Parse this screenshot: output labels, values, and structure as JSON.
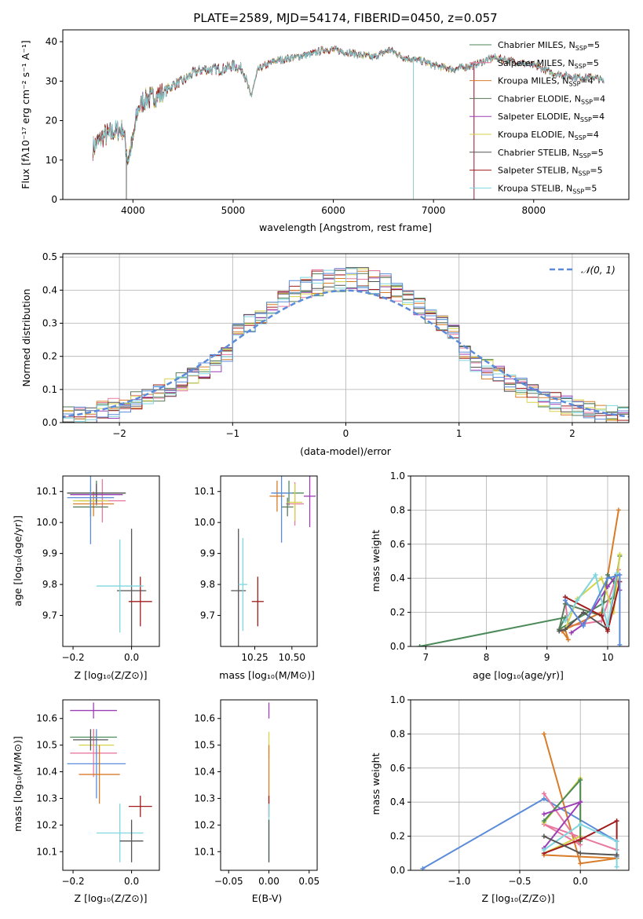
{
  "chart_data": [
    {
      "id": "spectrum",
      "type": "line",
      "title": "PLATE=2589, MJD=54174, FIBERID=0450, z=0.057",
      "xlabel": "wavelength [Angstrom, rest frame]",
      "ylabel": "Flux [fλ10⁻¹⁷ erg cm⁻² s⁻¹ A⁻¹]",
      "xlim": [
        3300,
        8950
      ],
      "ylim": [
        0,
        43
      ],
      "xticks": [
        4000,
        5000,
        6000,
        7000,
        8000
      ],
      "yticks": [
        0,
        10,
        20,
        30,
        40
      ],
      "legend_position": "top-right",
      "x_range_data": [
        3600,
        8700
      ],
      "anchors": [
        [
          3600,
          13
        ],
        [
          3700,
          16
        ],
        [
          3800,
          17
        ],
        [
          3900,
          18
        ],
        [
          3950,
          10
        ],
        [
          4000,
          15
        ],
        [
          4050,
          23
        ],
        [
          4100,
          25
        ],
        [
          4200,
          26
        ],
        [
          4300,
          27
        ],
        [
          4400,
          29
        ],
        [
          4500,
          30
        ],
        [
          4600,
          32
        ],
        [
          4700,
          33
        ],
        [
          4800,
          33
        ],
        [
          4900,
          33
        ],
        [
          5000,
          34
        ],
        [
          5100,
          33
        ],
        [
          5175,
          26
        ],
        [
          5250,
          33
        ],
        [
          5400,
          35
        ],
        [
          5600,
          36
        ],
        [
          5800,
          37
        ],
        [
          5900,
          38
        ],
        [
          6000,
          38
        ],
        [
          6200,
          37
        ],
        [
          6400,
          36
        ],
        [
          6563,
          38
        ],
        [
          6700,
          36
        ],
        [
          6900,
          35
        ],
        [
          7000,
          34
        ],
        [
          7200,
          33
        ],
        [
          7400,
          34
        ],
        [
          7600,
          36
        ],
        [
          7800,
          35
        ],
        [
          8000,
          34
        ],
        [
          8200,
          32
        ],
        [
          8400,
          31
        ],
        [
          8600,
          31
        ],
        [
          8700,
          30
        ]
      ],
      "dips": [
        {
          "x": 3934,
          "y": 0
        },
        {
          "x": 6800,
          "y": 0
        },
        {
          "x": 7405,
          "y": 0
        }
      ],
      "series": [
        {
          "name": "Chabrier MILES, N_SSP=5",
          "color": "#4c8a59"
        },
        {
          "name": "Salpeter MILES, N_SSP=5",
          "color": "#e87aa0"
        },
        {
          "name": "Kroupa MILES, N_SSP=4",
          "color": "#d87c2a"
        },
        {
          "name": "Chabrier ELODIE, N_SSP=4",
          "color": "#5a7a5a"
        },
        {
          "name": "Salpeter ELODIE, N_SSP=4",
          "color": "#9b3fb5"
        },
        {
          "name": "Kroupa ELODIE, N_SSP=4",
          "color": "#d6d24a"
        },
        {
          "name": "Chabrier STELIB, N_SSP=5",
          "color": "#555555"
        },
        {
          "name": "Salpeter STELIB, N_SSP=5",
          "color": "#a11d1d"
        },
        {
          "name": "Kroupa STELIB, N_SSP=5",
          "color": "#7fd6e0"
        }
      ]
    },
    {
      "id": "residuals",
      "type": "histogram",
      "xlabel": "(data-model)/error",
      "ylabel": "Normed distribution",
      "xlim": [
        -2.5,
        2.5
      ],
      "ylim": [
        0,
        0.51
      ],
      "xticks": [
        -2,
        -1,
        0,
        1,
        2
      ],
      "yticks": [
        0.0,
        0.1,
        0.2,
        0.3,
        0.4,
        0.5
      ],
      "bin_width": 0.1,
      "normal_label": "𝒩(0, 1)",
      "normal_color": "#5b8bd9",
      "legend_position": "top-right",
      "grid": true
    },
    {
      "id": "age_vs_Z",
      "type": "errorbar",
      "xlabel": "Z [log₁₀(Z/Z⊙)]",
      "ylabel": "age  [log₁₀(age/yr)]",
      "xlim": [
        -0.235,
        0.095
      ],
      "ylim": [
        9.6,
        10.15
      ],
      "xticks": [
        -0.2,
        0.0
      ],
      "yticks": [
        9.7,
        9.8,
        9.9,
        10.0,
        10.1
      ],
      "points": [
        {
          "x": -0.12,
          "y": 10.095,
          "xerr": 0.1,
          "yerr": 0.04,
          "color": "#4c8a59"
        },
        {
          "x": -0.1,
          "y": 10.07,
          "xerr": 0.08,
          "yerr": 0.07,
          "color": "#e87aa0"
        },
        {
          "x": -0.13,
          "y": 10.06,
          "xerr": 0.07,
          "yerr": 0.04,
          "color": "#d87c2a"
        },
        {
          "x": -0.14,
          "y": 10.05,
          "xerr": 0.06,
          "yerr": 0.03,
          "color": "#5a7a5a"
        },
        {
          "x": -0.12,
          "y": 10.09,
          "xerr": 0.09,
          "yerr": 0.03,
          "color": "#9b3fb5"
        },
        {
          "x": -0.14,
          "y": 10.07,
          "xerr": 0.06,
          "yerr": 0.05,
          "color": "#d6d24a"
        },
        {
          "x": -0.12,
          "y": 10.095,
          "xerr": 0.1,
          "yerr": 0.03,
          "color": "#555555"
        },
        {
          "x": 0.0,
          "y": 9.78,
          "xerr": 0.05,
          "yerr": 0.2,
          "color": "#555555"
        },
        {
          "x": 0.03,
          "y": 9.745,
          "xerr": 0.04,
          "yerr": 0.08,
          "color": "#a11d1d"
        },
        {
          "x": -0.04,
          "y": 9.795,
          "xerr": 0.08,
          "yerr": 0.15,
          "color": "#7fd6e0"
        },
        {
          "x": -0.14,
          "y": 10.08,
          "xerr": 0.08,
          "yerr": 0.15,
          "color": "#5b8bd9"
        }
      ]
    },
    {
      "id": "age_vs_mass",
      "type": "errorbar",
      "xlabel": "mass [log₁₀(M/M⊙)]",
      "xlim": [
        10.02,
        10.67
      ],
      "ylim": [
        9.6,
        10.15
      ],
      "xticks": [
        10.25,
        10.5
      ],
      "yticks": [
        9.7,
        9.8,
        9.9,
        10.0,
        10.1
      ],
      "points": [
        {
          "x": 10.48,
          "y": 10.095,
          "xerr": 0.1,
          "yerr": 0.04,
          "color": "#4c8a59"
        },
        {
          "x": 10.52,
          "y": 10.06,
          "xerr": 0.06,
          "yerr": 0.07,
          "color": "#e87aa0"
        },
        {
          "x": 10.4,
          "y": 10.085,
          "xerr": 0.05,
          "yerr": 0.05,
          "color": "#d87c2a"
        },
        {
          "x": 10.47,
          "y": 10.05,
          "xerr": 0.04,
          "yerr": 0.03,
          "color": "#5a7a5a"
        },
        {
          "x": 10.62,
          "y": 10.085,
          "xerr": 0.04,
          "yerr": 0.1,
          "color": "#9b3fb5"
        },
        {
          "x": 10.52,
          "y": 10.065,
          "xerr": 0.05,
          "yerr": 0.06,
          "color": "#d6d24a"
        },
        {
          "x": 10.14,
          "y": 9.78,
          "xerr": 0.05,
          "yerr": 0.2,
          "color": "#555555"
        },
        {
          "x": 10.27,
          "y": 9.745,
          "xerr": 0.04,
          "yerr": 0.08,
          "color": "#a11d1d"
        },
        {
          "x": 10.17,
          "y": 9.8,
          "xerr": 0.03,
          "yerr": 0.15,
          "color": "#7fd6e0"
        },
        {
          "x": 10.43,
          "y": 10.095,
          "xerr": 0.07,
          "yerr": 0.16,
          "color": "#5b8bd9"
        }
      ]
    },
    {
      "id": "weight_vs_age",
      "type": "line",
      "xlabel": "age  [log₁₀(age/yr)]",
      "ylabel": "mass weight",
      "xlim": [
        6.75,
        10.35
      ],
      "ylim": [
        0,
        1
      ],
      "xticks": [
        7,
        8,
        9,
        10
      ],
      "yticks": [
        0.0,
        0.2,
        0.4,
        0.6,
        0.8,
        1.0
      ],
      "grid": true,
      "series": [
        {
          "color": "#4c8a59",
          "x": [
            6.9,
            9.3,
            9.2,
            10.1,
            10.2
          ],
          "y": [
            0.0,
            0.17,
            0.1,
            0.29,
            0.53
          ]
        },
        {
          "color": "#e87aa0",
          "x": [
            9.3,
            9.35,
            9.9,
            10.18
          ],
          "y": [
            0.27,
            0.12,
            0.15,
            0.45
          ]
        },
        {
          "color": "#d87c2a",
          "x": [
            9.25,
            9.35,
            9.3,
            9.9,
            10.18
          ],
          "y": [
            0.09,
            0.04,
            0.1,
            0.2,
            0.8
          ]
        },
        {
          "color": "#5a7a5a",
          "x": [
            9.2,
            9.3,
            9.9,
            10.0,
            10.1
          ],
          "y": [
            0.1,
            0.25,
            0.18,
            0.42,
            0.38
          ]
        },
        {
          "color": "#9b3fb5",
          "x": [
            9.4,
            9.6,
            10.0,
            10.15,
            10.2
          ],
          "y": [
            0.08,
            0.13,
            0.35,
            0.42,
            0.33
          ]
        },
        {
          "color": "#d6d24a",
          "x": [
            9.3,
            9.5,
            9.9,
            10.1,
            10.2
          ],
          "y": [
            0.1,
            0.28,
            0.4,
            0.2,
            0.54
          ]
        },
        {
          "color": "#555555",
          "x": [
            9.2,
            9.3,
            9.6,
            10.0,
            10.15
          ],
          "y": [
            0.09,
            0.1,
            0.2,
            0.1,
            0.42
          ]
        },
        {
          "color": "#a11d1d",
          "x": [
            9.3,
            9.9,
            10.0,
            10.2
          ],
          "y": [
            0.29,
            0.18,
            0.09,
            0.38
          ]
        },
        {
          "color": "#7fd6e0",
          "x": [
            9.3,
            9.5,
            9.8,
            10.0,
            10.15
          ],
          "y": [
            0.15,
            0.27,
            0.42,
            0.12,
            0.43
          ]
        },
        {
          "color": "#5b8bd9",
          "x": [
            9.3,
            9.6,
            10.0,
            10.2,
            10.2
          ],
          "y": [
            0.27,
            0.12,
            0.4,
            0.42,
            0.01
          ]
        }
      ]
    },
    {
      "id": "mass_vs_Z",
      "type": "errorbar",
      "xlabel": "Z [log₁₀(Z/Z⊙)]",
      "ylabel": "mass [log₁₀(M/M⊙)]",
      "xlim": [
        -0.235,
        0.095
      ],
      "ylim": [
        10.03,
        10.67
      ],
      "xticks": [
        -0.2,
        0.0
      ],
      "yticks": [
        10.1,
        10.2,
        10.3,
        10.4,
        10.5,
        10.6
      ],
      "points": [
        {
          "x": -0.13,
          "y": 10.63,
          "xerr": 0.08,
          "yerr": 0.03,
          "color": "#9b3fb5"
        },
        {
          "x": -0.13,
          "y": 10.53,
          "xerr": 0.08,
          "yerr": 0.03,
          "color": "#4c8a59"
        },
        {
          "x": -0.12,
          "y": 10.5,
          "xerr": 0.06,
          "yerr": 0.05,
          "color": "#d6d24a"
        },
        {
          "x": -0.13,
          "y": 10.47,
          "xerr": 0.08,
          "yerr": 0.09,
          "color": "#e87aa0"
        },
        {
          "x": -0.12,
          "y": 10.43,
          "xerr": 0.1,
          "yerr": 0.13,
          "color": "#5b8bd9"
        },
        {
          "x": -0.11,
          "y": 10.39,
          "xerr": 0.07,
          "yerr": 0.11,
          "color": "#d87c2a"
        },
        {
          "x": -0.14,
          "y": 10.52,
          "xerr": 0.06,
          "yerr": 0.04,
          "color": "#555555"
        },
        {
          "x": 0.03,
          "y": 10.27,
          "xerr": 0.04,
          "yerr": 0.04,
          "color": "#a11d1d"
        },
        {
          "x": -0.04,
          "y": 10.17,
          "xerr": 0.08,
          "yerr": 0.11,
          "color": "#7fd6e0"
        },
        {
          "x": 0.0,
          "y": 10.14,
          "xerr": 0.04,
          "yerr": 0.08,
          "color": "#555555"
        }
      ]
    },
    {
      "id": "mass_vs_ebv",
      "type": "errorbar",
      "xlabel": "E(B-V)",
      "xlim": [
        -0.06,
        0.06
      ],
      "ylim": [
        10.03,
        10.67
      ],
      "xticks": [
        -0.05,
        0.0,
        0.05
      ],
      "yticks": [
        10.1,
        10.2,
        10.3,
        10.4,
        10.5,
        10.6
      ],
      "points": [
        {
          "x": 0.0,
          "y": 10.63,
          "xerr": 0.0,
          "yerr": 0.03,
          "color": "#9b3fb5"
        },
        {
          "x": 0.0,
          "y": 10.5,
          "xerr": 0.0,
          "yerr": 0.05,
          "color": "#d6d24a"
        },
        {
          "x": 0.0,
          "y": 10.39,
          "xerr": 0.0,
          "yerr": 0.11,
          "color": "#d87c2a"
        },
        {
          "x": 0.0,
          "y": 10.27,
          "xerr": 0.0,
          "yerr": 0.04,
          "color": "#a11d1d"
        },
        {
          "x": 0.0,
          "y": 10.17,
          "xerr": 0.0,
          "yerr": 0.11,
          "color": "#7fd6e0"
        },
        {
          "x": 0.0,
          "y": 10.14,
          "xerr": 0.0,
          "yerr": 0.08,
          "color": "#555555"
        }
      ]
    },
    {
      "id": "weight_vs_Z",
      "type": "line",
      "xlabel": "Z [log₁₀(Z/Z⊙)]",
      "ylabel": "mass weight",
      "xlim": [
        -1.4,
        0.4
      ],
      "ylim": [
        0,
        1
      ],
      "xticks": [
        -1.0,
        -0.5,
        0.0
      ],
      "yticks": [
        0.0,
        0.2,
        0.4,
        0.6,
        0.8,
        1.0
      ],
      "grid": true,
      "series": [
        {
          "color": "#5b8bd9",
          "x": [
            -1.3,
            -0.3,
            0.3,
            0.3
          ],
          "y": [
            0.01,
            0.42,
            0.17,
            0.08
          ]
        },
        {
          "color": "#d87c2a",
          "x": [
            -0.3,
            0.0,
            0.3,
            -0.3
          ],
          "y": [
            0.8,
            0.04,
            0.07,
            0.09
          ]
        },
        {
          "color": "#e87aa0",
          "x": [
            -0.3,
            0.0,
            -0.3,
            0.3
          ],
          "y": [
            0.45,
            0.15,
            0.27,
            0.12
          ]
        },
        {
          "color": "#d6d24a",
          "x": [
            -0.3,
            0.0,
            0.0,
            -0.3
          ],
          "y": [
            0.28,
            0.54,
            0.2,
            0.1
          ]
        },
        {
          "color": "#4c8a59",
          "x": [
            -0.3,
            0.0,
            0.0
          ],
          "y": [
            0.29,
            0.53,
            0.17
          ]
        },
        {
          "color": "#9b3fb5",
          "x": [
            -0.3,
            0.0,
            -0.3
          ],
          "y": [
            0.33,
            0.4,
            0.13
          ]
        },
        {
          "color": "#a11d1d",
          "x": [
            -0.3,
            0.0,
            0.3,
            0.3
          ],
          "y": [
            0.1,
            0.18,
            0.29,
            0.09
          ]
        },
        {
          "color": "#7fd6e0",
          "x": [
            -0.3,
            0.0,
            0.3,
            0.3
          ],
          "y": [
            0.12,
            0.27,
            0.17,
            0.02
          ]
        },
        {
          "color": "#555555",
          "x": [
            -0.3,
            0.0,
            0.3
          ],
          "y": [
            0.2,
            0.1,
            0.09
          ]
        }
      ]
    }
  ]
}
